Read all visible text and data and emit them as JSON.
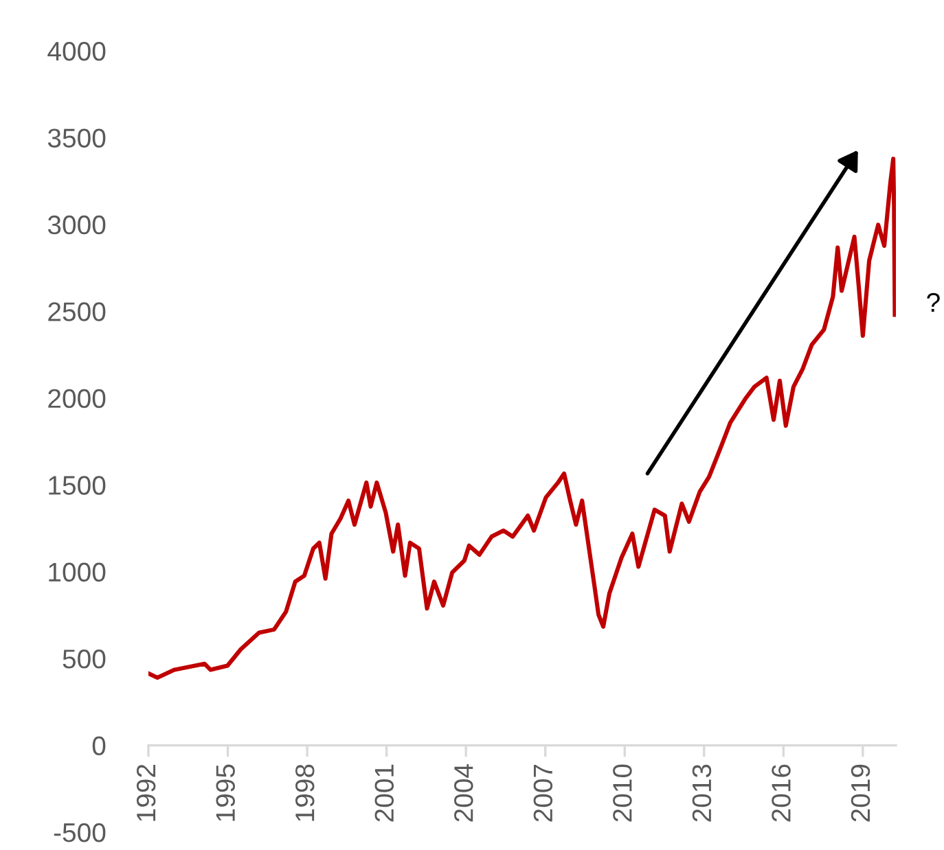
{
  "chart_data": {
    "type": "line",
    "x": [
      1992.0,
      1992.34,
      1992.98,
      1994.12,
      1994.35,
      1994.99,
      1995.49,
      1996.18,
      1996.75,
      1997.2,
      1997.55,
      1997.89,
      1998.23,
      1998.46,
      1998.69,
      1998.92,
      1999.26,
      1999.56,
      1999.79,
      2000.24,
      2000.4,
      2000.63,
      2000.97,
      2001.25,
      2001.43,
      2001.7,
      2001.89,
      2002.23,
      2002.53,
      2002.8,
      2003.14,
      2003.48,
      2003.94,
      2004.12,
      2004.51,
      2004.97,
      2005.42,
      2005.77,
      2006.34,
      2006.57,
      2007.02,
      2007.48,
      2007.71,
      2007.94,
      2008.16,
      2008.39,
      2008.62,
      2008.85,
      2009.01,
      2009.19,
      2009.42,
      2009.88,
      2010.29,
      2010.52,
      2011.13,
      2011.52,
      2011.7,
      2012.16,
      2012.43,
      2012.84,
      2013.19,
      2013.64,
      2013.99,
      2014.56,
      2014.9,
      2015.36,
      2015.63,
      2015.86,
      2016.09,
      2016.38,
      2016.73,
      2017.07,
      2017.53,
      2017.87,
      2018.05,
      2018.2,
      2018.68,
      2018.84,
      2019.0,
      2019.24,
      2019.58,
      2019.81,
      2020.04,
      2020.15,
      2020.18,
      2020.21
    ],
    "series": [
      {
        "color": "#c00000",
        "values": [
          414,
          390,
          435,
          470,
          435,
          459,
          553,
          649,
          667,
          770,
          943,
          977,
          1133,
          1167,
          960,
          1219,
          1306,
          1409,
          1271,
          1513,
          1375,
          1513,
          1340,
          1116,
          1271,
          977,
          1167,
          1133,
          788,
          943,
          805,
          995,
          1064,
          1150,
          1098,
          1202,
          1237,
          1202,
          1323,
          1237,
          1427,
          1513,
          1565,
          1409,
          1271,
          1409,
          1167,
          926,
          753,
          684,
          874,
          1081,
          1219,
          1029,
          1357,
          1323,
          1116,
          1392,
          1288,
          1461,
          1547,
          1720,
          1858,
          1996,
          2065,
          2117,
          1875,
          2100,
          1841,
          2065,
          2169,
          2307,
          2394,
          2584,
          2867,
          2618,
          2929,
          2653,
          2359,
          2791,
          2998,
          2877,
          3240,
          3378,
          3100,
          2480
        ]
      }
    ],
    "xlim": [
      1992,
      2020.25
    ],
    "xticks": [
      1992,
      1995,
      1998,
      2001,
      2004,
      2007,
      2010,
      2013,
      2016,
      2019
    ],
    "ylim": [
      -500,
      4000
    ],
    "yticks": [
      -500,
      0,
      500,
      1000,
      1500,
      2000,
      2500,
      3000,
      3500,
      4000
    ],
    "annotations": [
      "?"
    ],
    "grid": false,
    "legend": false,
    "marker": "none",
    "line_style": "solid"
  }
}
